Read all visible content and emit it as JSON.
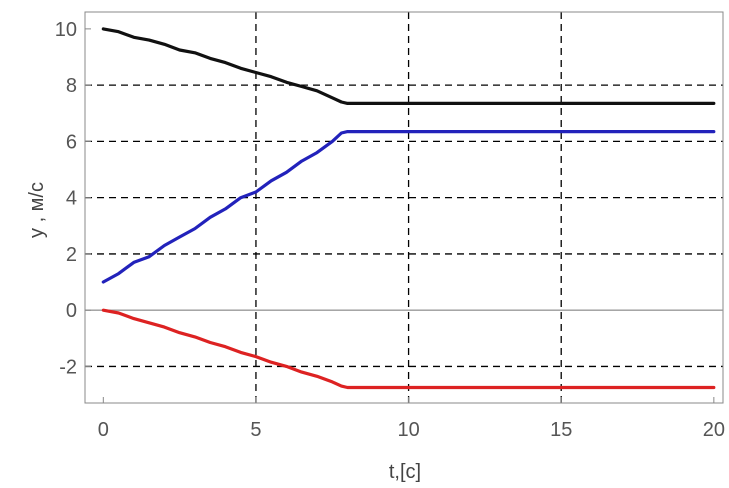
{
  "chart_data": {
    "type": "line",
    "xlabel": "t,[c]",
    "ylabel": "y , м/с",
    "xlim": [
      -0.6,
      20.3
    ],
    "ylim": [
      -3.3,
      10.6
    ],
    "xticks": [
      0,
      5,
      10,
      15,
      20
    ],
    "yticks": [
      10,
      8,
      6,
      4,
      2,
      0,
      -2
    ],
    "xtick_labels": [
      "0",
      "5",
      "10",
      "15",
      "20"
    ],
    "ytick_labels": [
      "10",
      "8",
      "6",
      "4",
      "2",
      "0",
      "-2"
    ],
    "grid": "dashed",
    "grid_x": [
      5,
      10,
      15
    ],
    "grid_y": [
      8,
      6,
      4,
      2,
      -2
    ],
    "legend": "none",
    "series": [
      {
        "color": "#111111",
        "x": [
          0,
          0.5,
          1,
          1.5,
          2,
          2.5,
          3,
          3.5,
          4,
          4.5,
          5,
          5.5,
          6,
          6.5,
          7,
          7.5,
          7.8,
          8,
          9,
          10,
          12,
          14,
          16,
          18,
          20
        ],
        "y": [
          10,
          9.9,
          9.7,
          9.6,
          9.45,
          9.25,
          9.15,
          8.95,
          8.8,
          8.6,
          8.45,
          8.3,
          8.1,
          7.95,
          7.8,
          7.55,
          7.4,
          7.35,
          7.35,
          7.35,
          7.35,
          7.35,
          7.35,
          7.35,
          7.35
        ]
      },
      {
        "color": "#2222bb",
        "x": [
          0,
          0.5,
          1,
          1.5,
          2,
          2.5,
          3,
          3.5,
          4,
          4.5,
          5,
          5.5,
          6,
          6.5,
          7,
          7.5,
          7.8,
          8,
          9,
          10,
          12,
          14,
          16,
          18,
          20
        ],
        "y": [
          1,
          1.3,
          1.7,
          1.9,
          2.3,
          2.6,
          2.9,
          3.3,
          3.6,
          4.0,
          4.2,
          4.6,
          4.9,
          5.3,
          5.6,
          6.0,
          6.3,
          6.35,
          6.35,
          6.35,
          6.35,
          6.35,
          6.35,
          6.35,
          6.35
        ]
      },
      {
        "color": "#dd2222",
        "x": [
          0,
          0.5,
          1,
          1.5,
          2,
          2.5,
          3,
          3.5,
          4,
          4.5,
          5,
          5.5,
          6,
          6.5,
          7,
          7.5,
          7.8,
          8,
          9,
          10,
          12,
          14,
          16,
          18,
          20
        ],
        "y": [
          0,
          -0.1,
          -0.3,
          -0.45,
          -0.6,
          -0.8,
          -0.95,
          -1.15,
          -1.3,
          -1.5,
          -1.65,
          -1.85,
          -2.0,
          -2.2,
          -2.35,
          -2.55,
          -2.7,
          -2.75,
          -2.75,
          -2.75,
          -2.75,
          -2.75,
          -2.75,
          -2.75,
          -2.75
        ]
      }
    ]
  }
}
